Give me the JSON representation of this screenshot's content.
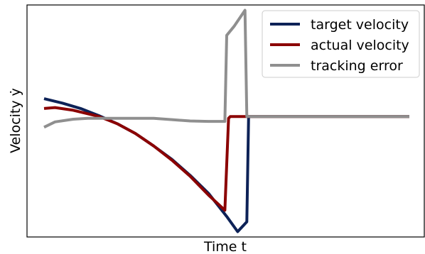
{
  "chart_data": {
    "type": "line",
    "xlabel": "Time t",
    "ylabel": "Velocity ẏ",
    "xlim": [
      0,
      10
    ],
    "ylim": [
      -1.35,
      1.25
    ],
    "xticks": [],
    "yticks": [],
    "grid": false,
    "legend_position": "top-right",
    "series": [
      {
        "name": "target velocity",
        "color": "#0d2257",
        "x": [
          0.0,
          0.5,
          1.0,
          1.5,
          2.0,
          2.5,
          3.0,
          3.5,
          4.0,
          4.5,
          5.0,
          5.3,
          5.55,
          5.6,
          6.0,
          7.0,
          8.0,
          9.0,
          10.0
        ],
        "y": [
          0.2,
          0.15,
          0.09,
          0.01,
          -0.08,
          -0.19,
          -0.33,
          -0.48,
          -0.66,
          -0.86,
          -1.12,
          -1.29,
          -1.18,
          0.0,
          0.0,
          0.0,
          0.0,
          0.0,
          0.0
        ]
      },
      {
        "name": "actual velocity",
        "color": "#8b0000",
        "x": [
          0.0,
          0.3,
          0.8,
          1.5,
          2.0,
          2.5,
          3.0,
          3.5,
          4.0,
          4.5,
          4.95,
          5.05,
          5.1,
          5.5,
          6.0,
          7.0,
          8.0,
          9.0,
          10.0
        ],
        "y": [
          0.09,
          0.1,
          0.07,
          0.0,
          -0.08,
          -0.19,
          -0.33,
          -0.49,
          -0.67,
          -0.88,
          -1.05,
          -0.02,
          0.0,
          0.0,
          0.0,
          0.0,
          0.0,
          0.0,
          0.0
        ]
      },
      {
        "name": "tracking error",
        "color": "#8f8f8f",
        "x": [
          0.0,
          0.3,
          0.8,
          1.2,
          1.5,
          2.0,
          2.5,
          3.0,
          3.5,
          4.0,
          4.5,
          4.95,
          5.0,
          5.2,
          5.5,
          5.55,
          5.7,
          6.0,
          7.0,
          8.0,
          9.0,
          10.0
        ],
        "y": [
          -0.12,
          -0.06,
          -0.03,
          -0.02,
          -0.02,
          -0.02,
          -0.02,
          -0.02,
          -0.035,
          -0.05,
          -0.055,
          -0.055,
          0.91,
          1.01,
          1.19,
          0.0,
          0.0,
          0.0,
          0.0,
          0.0,
          0.0,
          0.0
        ]
      }
    ]
  }
}
